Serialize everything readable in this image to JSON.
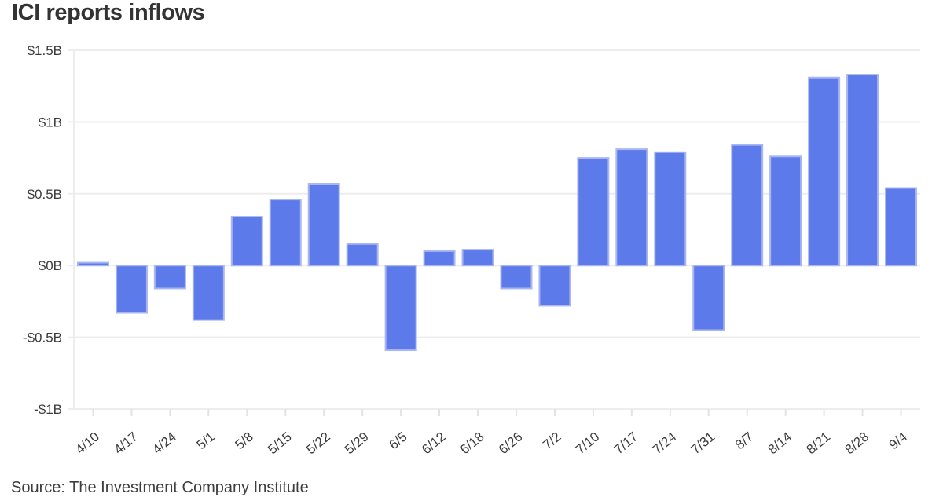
{
  "title": "ICI reports inflows",
  "source_note": "Source: The Investment Company Institute",
  "chart_data": {
    "type": "bar",
    "title": "ICI reports inflows",
    "categories": [
      "4/10",
      "4/17",
      "4/24",
      "5/1",
      "5/8",
      "5/15",
      "5/22",
      "5/29",
      "6/5",
      "6/12",
      "6/18",
      "6/26",
      "7/2",
      "7/10",
      "7/17",
      "7/24",
      "7/31",
      "8/7",
      "8/14",
      "8/21",
      "8/28",
      "9/4"
    ],
    "values": [
      0.02,
      -0.33,
      -0.16,
      -0.38,
      0.34,
      0.46,
      0.57,
      0.15,
      -0.59,
      0.1,
      0.11,
      -0.16,
      -0.28,
      0.75,
      0.81,
      0.79,
      -0.45,
      0.84,
      0.76,
      1.31,
      1.33,
      0.54
    ],
    "xlabel": "",
    "ylabel": "",
    "ylim": [
      -1.0,
      1.5
    ],
    "yticks": [
      {
        "value": 1.5,
        "label": "$1.5B"
      },
      {
        "value": 1.0,
        "label": "$1B"
      },
      {
        "value": 0.5,
        "label": "$0.5B"
      },
      {
        "value": 0.0,
        "label": "$0B"
      },
      {
        "value": -0.5,
        "label": "-$0.5B"
      },
      {
        "value": -1.0,
        "label": "-$1B"
      }
    ],
    "grid": true,
    "legend": false,
    "colors": {
      "bar_fill": "#5c7ae9",
      "bar_border": "#aab6f1",
      "gridline": "#ededed",
      "tick": "#e3e3e3",
      "axis_text": "#3b3b3b",
      "title_text": "#333333"
    }
  }
}
